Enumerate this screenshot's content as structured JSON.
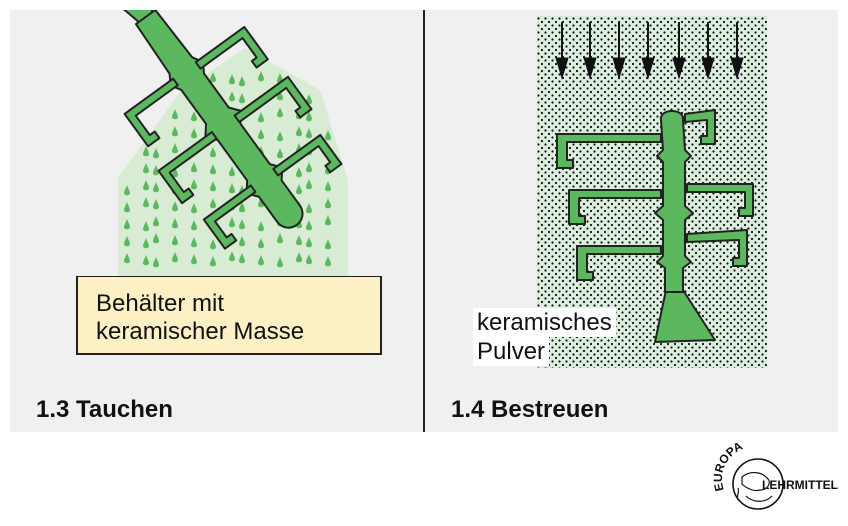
{
  "left_panel": {
    "caption": "1.3 Tauchen",
    "container_label_line1": "Behälter mit",
    "container_label_line2": "keramischer Masse"
  },
  "right_panel": {
    "caption": "1.4 Bestreuen",
    "powder_label_line1": "keramisches",
    "powder_label_line2": "Pulver"
  },
  "logo": {
    "top_text": "EUROPA",
    "side_text": "LEHRMITTEL"
  },
  "colors": {
    "panel_bg": "#f0f0f0",
    "part_green": "#5cb85f",
    "slurry_green": "#d8ecd4",
    "powder_green": "#dceedd",
    "container_yellow": "#fcf0c4",
    "outline": "#222222"
  }
}
